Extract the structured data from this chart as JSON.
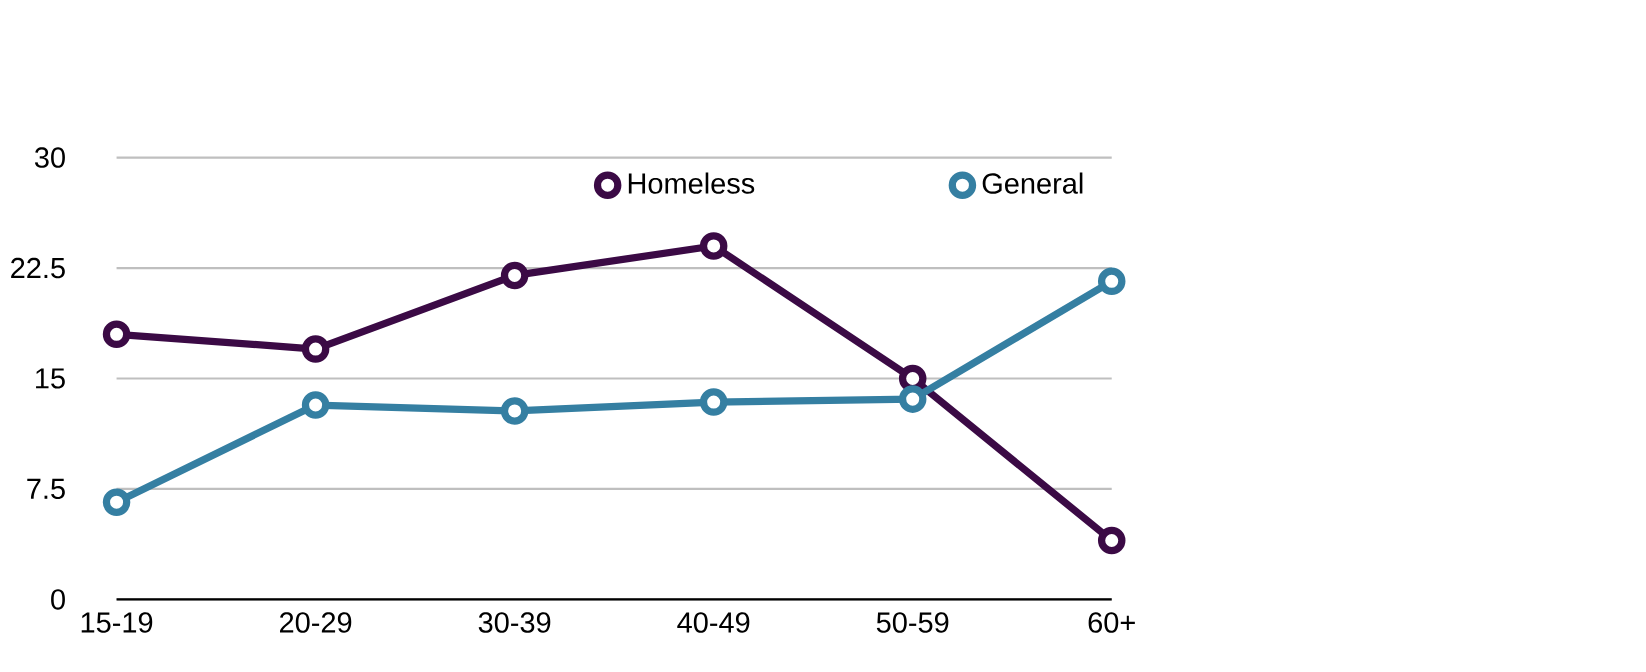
{
  "chart_data": {
    "type": "line",
    "categories": [
      "15-19",
      "20-29",
      "30-39",
      "40-49",
      "50-59",
      "60+"
    ],
    "series": [
      {
        "name": "Homeless",
        "color": "#3b0a45",
        "values": [
          18,
          17,
          22,
          24,
          15,
          4
        ]
      },
      {
        "name": "General",
        "color": "#357fa2",
        "values": [
          6.6,
          13.2,
          12.8,
          13.4,
          13.6,
          21.6
        ]
      }
    ],
    "ylim": [
      0,
      30
    ],
    "yticks": [
      0,
      7.5,
      15,
      22.5,
      30
    ],
    "grid": "y",
    "legend": "top",
    "marker": "circle",
    "line_style": "solid"
  }
}
